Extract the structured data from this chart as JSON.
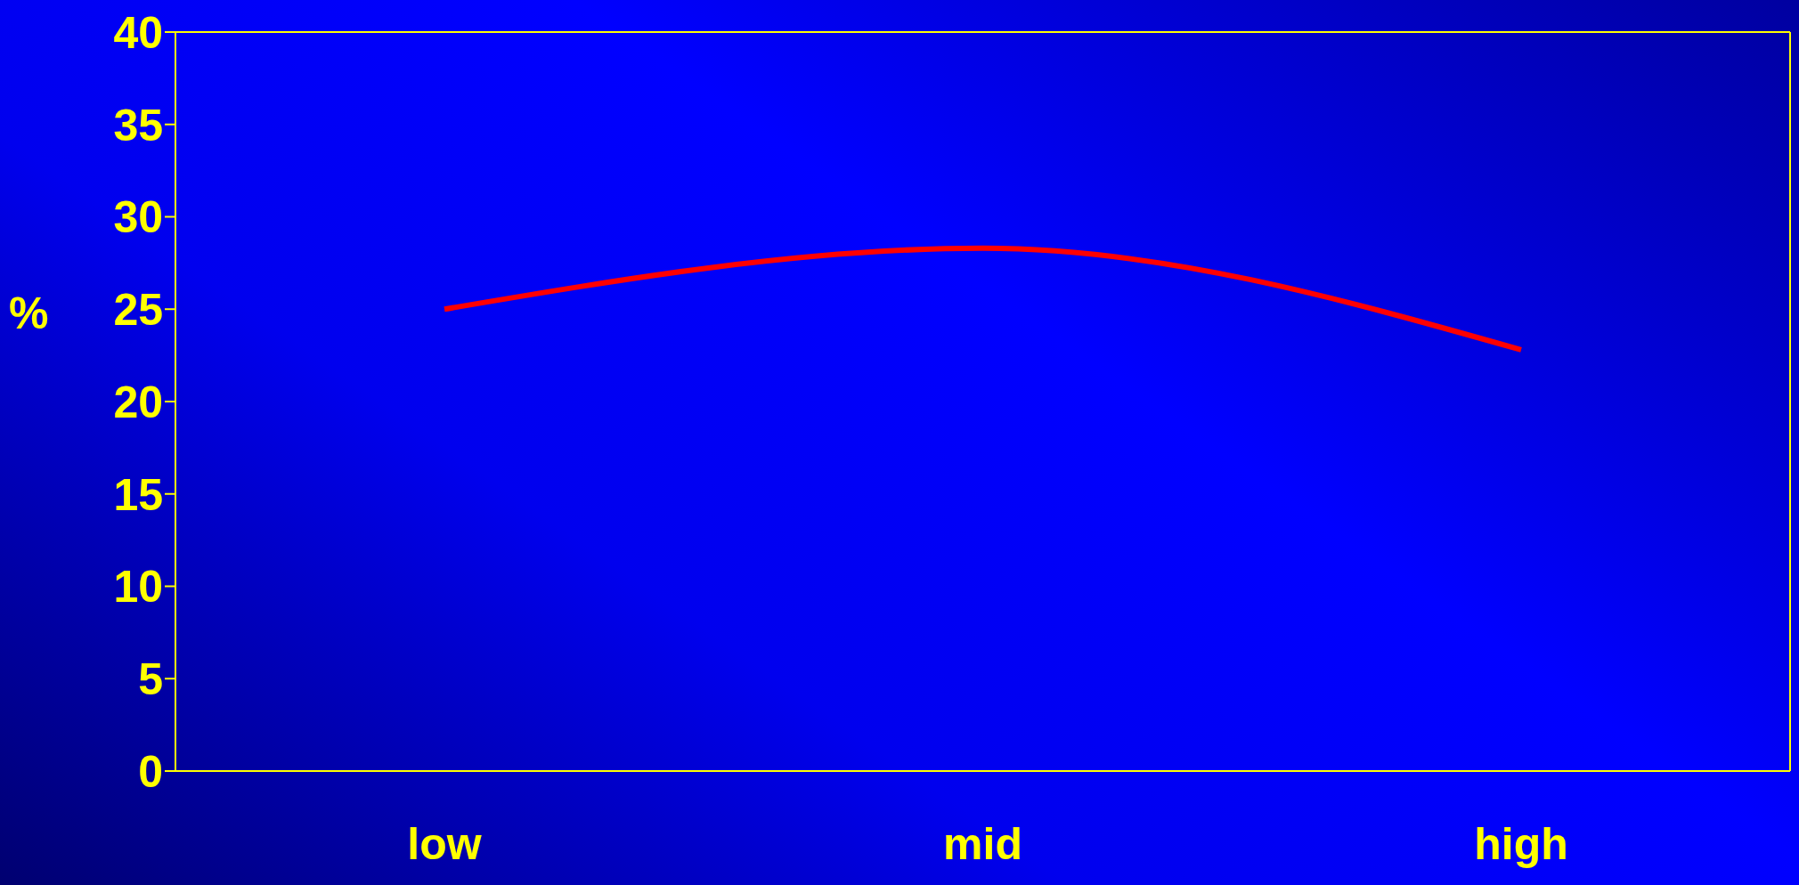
{
  "chart_data": {
    "type": "line",
    "ylabel": "%",
    "categories": [
      "low",
      "mid",
      "high"
    ],
    "series": [
      {
        "color": "#ff0000",
        "values": [
          25,
          28.3,
          22.8
        ]
      }
    ],
    "ylim": [
      0,
      40
    ],
    "yticks": [
      0,
      5,
      10,
      15,
      20,
      25,
      30,
      35,
      40
    ],
    "marker": "none"
  }
}
